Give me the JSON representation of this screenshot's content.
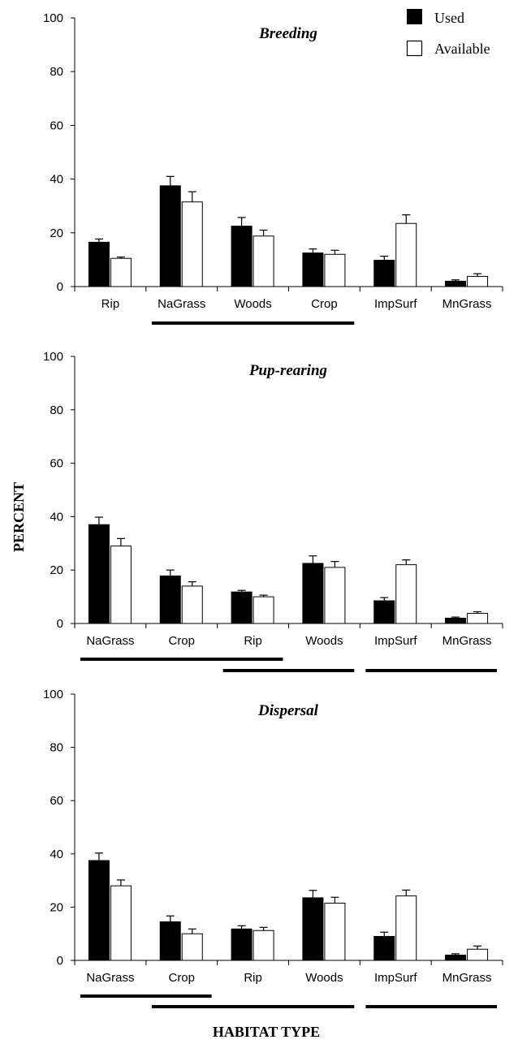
{
  "figure": {
    "ylabel": "PERCENT",
    "xlabel": "HABITAT TYPE",
    "legend": {
      "used": "Used",
      "available": "Available"
    },
    "colors": {
      "used": "#000000",
      "available": "#ffffff",
      "axis": "#000000"
    }
  },
  "chart_data": [
    {
      "type": "bar",
      "title": "Breeding",
      "categories": [
        "Rip",
        "NaGrass",
        "Woods",
        "Crop",
        "ImpSurf",
        "MnGrass"
      ],
      "series": [
        {
          "name": "Used",
          "values": [
            16.5,
            37.5,
            22.5,
            12.5,
            9.8,
            2.0
          ],
          "errors": [
            1.2,
            3.5,
            3.2,
            1.5,
            1.5,
            0.5
          ]
        },
        {
          "name": "Available",
          "values": [
            10.5,
            31.5,
            18.8,
            12.0,
            23.5,
            3.8
          ],
          "errors": [
            0.5,
            3.8,
            2.2,
            1.5,
            3.2,
            1.0
          ]
        }
      ],
      "ylim": [
        0,
        100
      ],
      "yticks": [
        0,
        20,
        40,
        60,
        80,
        100
      ],
      "underlines": [
        [
          1,
          3
        ]
      ]
    },
    {
      "type": "bar",
      "title": "Pup-rearing",
      "categories": [
        "NaGrass",
        "Crop",
        "Rip",
        "Woods",
        "ImpSurf",
        "MnGrass"
      ],
      "series": [
        {
          "name": "Used",
          "values": [
            37.0,
            17.8,
            11.8,
            22.5,
            8.5,
            2.0
          ],
          "errors": [
            2.8,
            2.2,
            0.6,
            2.8,
            1.2,
            0.4
          ]
        },
        {
          "name": "Available",
          "values": [
            29.0,
            14.0,
            10.0,
            21.0,
            22.0,
            3.8
          ],
          "errors": [
            2.8,
            1.6,
            0.6,
            2.2,
            1.8,
            0.6
          ]
        }
      ],
      "ylim": [
        0,
        100
      ],
      "yticks": [
        0,
        20,
        40,
        60,
        80,
        100
      ],
      "underlines": [
        [
          0,
          2
        ],
        [
          2,
          3
        ],
        [
          4,
          5
        ]
      ]
    },
    {
      "type": "bar",
      "title": "Dispersal",
      "categories": [
        "NaGrass",
        "Crop",
        "Rip",
        "Woods",
        "ImpSurf",
        "MnGrass"
      ],
      "series": [
        {
          "name": "Used",
          "values": [
            37.5,
            14.5,
            11.8,
            23.5,
            9.0,
            2.0
          ],
          "errors": [
            2.8,
            2.2,
            1.2,
            2.8,
            1.6,
            0.5
          ]
        },
        {
          "name": "Available",
          "values": [
            28.0,
            10.0,
            11.2,
            21.5,
            24.2,
            4.2
          ],
          "errors": [
            2.2,
            1.8,
            1.2,
            2.2,
            2.2,
            1.2
          ]
        }
      ],
      "ylim": [
        0,
        100
      ],
      "yticks": [
        0,
        20,
        40,
        60,
        80,
        100
      ],
      "underlines": [
        [
          0,
          1
        ],
        [
          1,
          3
        ],
        [
          4,
          5
        ]
      ]
    }
  ]
}
